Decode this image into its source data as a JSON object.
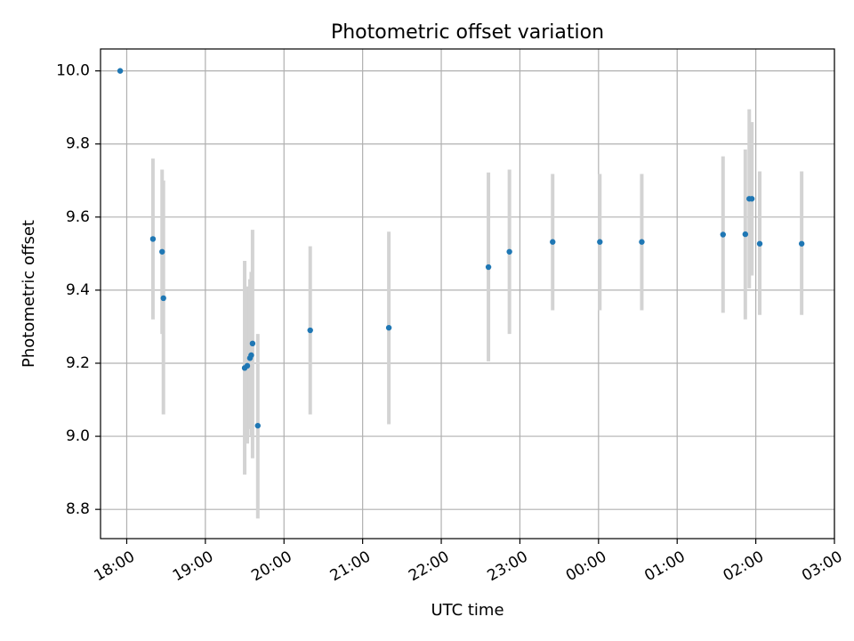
{
  "chart_data": {
    "type": "scatter",
    "title": "Photometric offset variation",
    "xlabel": "UTC time",
    "ylabel": "Photometric offset",
    "grid": true,
    "x_range": [
      "17:40",
      "03:00"
    ],
    "ylim": [
      8.72,
      10.06
    ],
    "x_ticks": [
      "18:00",
      "19:00",
      "20:00",
      "21:00",
      "22:00",
      "23:00",
      "00:00",
      "01:00",
      "02:00",
      "03:00"
    ],
    "y_ticks": [
      "8.8",
      "9.0",
      "9.2",
      "9.4",
      "9.6",
      "9.8",
      "10.0"
    ],
    "colors": {
      "point": "#1f77b4",
      "error_bar": "#d3d3d3",
      "grid": "#b0b0b0"
    },
    "series": [
      {
        "points": [
          {
            "x": "17:55",
            "y": 10.0,
            "yerr_low": 10.0,
            "yerr_high": 10.0
          },
          {
            "x": "18:20",
            "y": 9.54,
            "yerr_low": 9.32,
            "yerr_high": 9.76
          },
          {
            "x": "18:27",
            "y": 9.505,
            "yerr_low": 9.28,
            "yerr_high": 9.73
          },
          {
            "x": "18:28",
            "y": 9.378,
            "yerr_low": 9.06,
            "yerr_high": 9.7
          },
          {
            "x": "19:30",
            "y": 9.187,
            "yerr_low": 8.895,
            "yerr_high": 9.48
          },
          {
            "x": "19:32",
            "y": 9.193,
            "yerr_low": 8.98,
            "yerr_high": 9.41
          },
          {
            "x": "19:34",
            "y": 9.214,
            "yerr_low": 9.02,
            "yerr_high": 9.43
          },
          {
            "x": "19:35",
            "y": 9.222,
            "yerr_low": 9.0,
            "yerr_high": 9.45
          },
          {
            "x": "19:36",
            "y": 9.254,
            "yerr_low": 8.94,
            "yerr_high": 9.565
          },
          {
            "x": "19:40",
            "y": 9.029,
            "yerr_low": 8.775,
            "yerr_high": 9.28
          },
          {
            "x": "20:20",
            "y": 9.29,
            "yerr_low": 9.06,
            "yerr_high": 9.52
          },
          {
            "x": "21:20",
            "y": 9.297,
            "yerr_low": 9.033,
            "yerr_high": 9.56
          },
          {
            "x": "22:36",
            "y": 9.463,
            "yerr_low": 9.205,
            "yerr_high": 9.722
          },
          {
            "x": "22:52",
            "y": 9.505,
            "yerr_low": 9.28,
            "yerr_high": 9.73
          },
          {
            "x": "23:25",
            "y": 9.532,
            "yerr_low": 9.345,
            "yerr_high": 9.718
          },
          {
            "x": "00:01",
            "y": 9.532,
            "yerr_low": 9.345,
            "yerr_high": 9.718
          },
          {
            "x": "00:33",
            "y": 9.532,
            "yerr_low": 9.345,
            "yerr_high": 9.718
          },
          {
            "x": "01:35",
            "y": 9.552,
            "yerr_low": 9.338,
            "yerr_high": 9.766
          },
          {
            "x": "01:52",
            "y": 9.553,
            "yerr_low": 9.32,
            "yerr_high": 9.785
          },
          {
            "x": "01:55",
            "y": 9.65,
            "yerr_low": 9.405,
            "yerr_high": 9.895
          },
          {
            "x": "01:57",
            "y": 9.65,
            "yerr_low": 9.44,
            "yerr_high": 9.86
          },
          {
            "x": "02:03",
            "y": 9.527,
            "yerr_low": 9.332,
            "yerr_high": 9.725
          },
          {
            "x": "02:35",
            "y": 9.527,
            "yerr_low": 9.332,
            "yerr_high": 9.725
          }
        ]
      }
    ]
  }
}
